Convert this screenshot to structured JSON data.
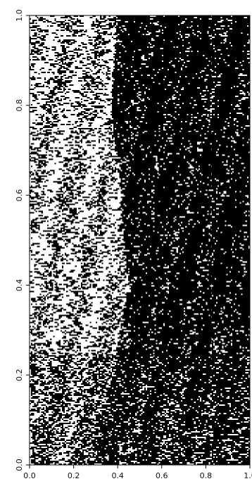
{
  "chart_data": {
    "type": "heatmap",
    "title": "",
    "xlabel": "",
    "ylabel": "",
    "xlim": [
      0,
      1
    ],
    "ylim": [
      0,
      1
    ],
    "colors": {
      "cell_on": "#000000",
      "cell_off": "#ffffff",
      "axis": "#000000"
    },
    "x_ticks": [
      {
        "value": 0.0,
        "label": "0.0"
      },
      {
        "value": 0.2,
        "label": "0.2"
      },
      {
        "value": 0.4,
        "label": "0.4"
      },
      {
        "value": 0.6,
        "label": "0.6"
      },
      {
        "value": 0.8,
        "label": "0.8"
      },
      {
        "value": 1.0,
        "label": "1.0"
      }
    ],
    "y_ticks": [
      {
        "value": 0.0,
        "label": "0.0"
      },
      {
        "value": 0.2,
        "label": "0.2"
      },
      {
        "value": 0.4,
        "label": "0.4"
      },
      {
        "value": 0.6,
        "label": "0.6"
      },
      {
        "value": 0.8,
        "label": "0.8"
      },
      {
        "value": 1.0,
        "label": "1.0"
      }
    ],
    "boundary": {
      "y": [
        0.0,
        0.2,
        0.35,
        0.4,
        0.55,
        0.62,
        0.75,
        0.85,
        1.0
      ],
      "x": [
        0.25,
        0.37,
        0.43,
        0.45,
        0.42,
        0.41,
        0.38,
        0.37,
        0.4
      ]
    }
  }
}
